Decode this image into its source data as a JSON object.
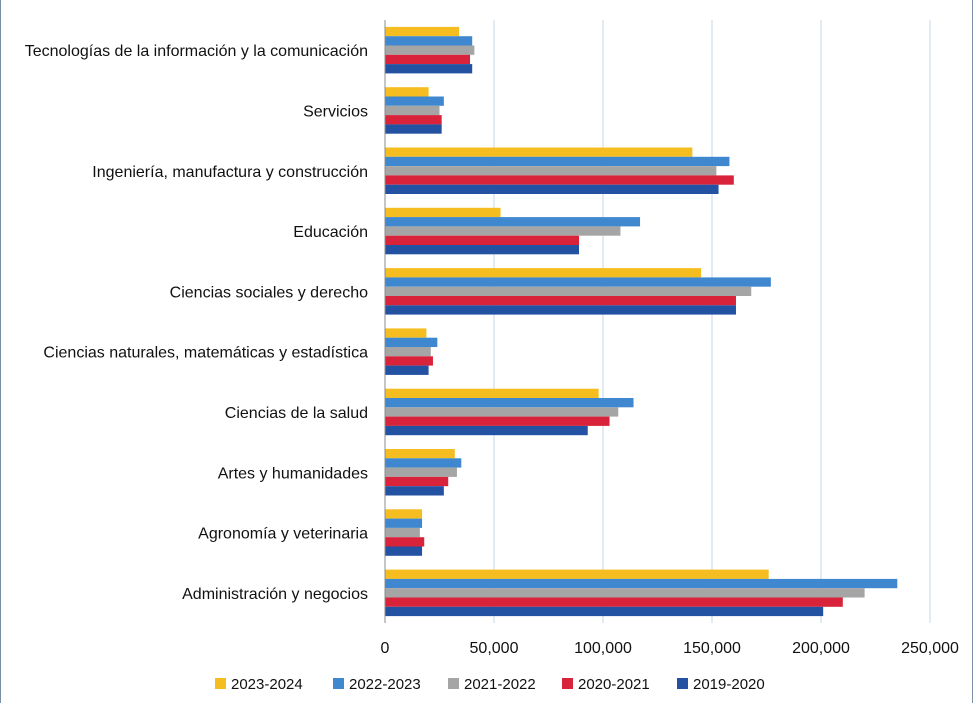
{
  "chart_data": {
    "type": "bar",
    "orientation": "horizontal",
    "categories": [
      "Tecnologías de la información y la comunicación",
      "Servicios",
      "Ingeniería, manufactura y construcción",
      "Educación",
      "Ciencias sociales y derecho",
      "Ciencias naturales, matemáticas y estadística",
      "Ciencias de la salud",
      "Artes y humanidades",
      "Agronomía y veterinaria",
      "Administración y negocios"
    ],
    "series": [
      {
        "name": "2023-2024",
        "color": "#F5BD1F",
        "values": [
          34000,
          20000,
          141000,
          53000,
          145000,
          19000,
          98000,
          32000,
          17000,
          176000
        ]
      },
      {
        "name": "2022-2023",
        "color": "#3F88CF",
        "values": [
          40000,
          27000,
          158000,
          117000,
          177000,
          24000,
          114000,
          35000,
          17000,
          235000
        ]
      },
      {
        "name": "2021-2022",
        "color": "#A5A5A5",
        "values": [
          41000,
          25000,
          152000,
          108000,
          168000,
          21000,
          107000,
          33000,
          16000,
          220000
        ]
      },
      {
        "name": "2020-2021",
        "color": "#D8233A",
        "values": [
          39000,
          26000,
          160000,
          89000,
          161000,
          22000,
          103000,
          29000,
          18000,
          210000
        ]
      },
      {
        "name": "2019-2020",
        "color": "#2452A3",
        "values": [
          40000,
          26000,
          153000,
          89000,
          161000,
          20000,
          93000,
          27000,
          17000,
          201000
        ]
      }
    ],
    "xlim": [
      0,
      250000
    ],
    "ticks": [
      "0",
      "50,000",
      "100,000",
      "150,000",
      "200,000",
      "250,000"
    ],
    "tick_values": [
      0,
      50000,
      100000,
      150000,
      200000,
      250000
    ],
    "grid": "vertical",
    "legend_position": "bottom",
    "title": "",
    "xlabel": "",
    "ylabel": ""
  }
}
